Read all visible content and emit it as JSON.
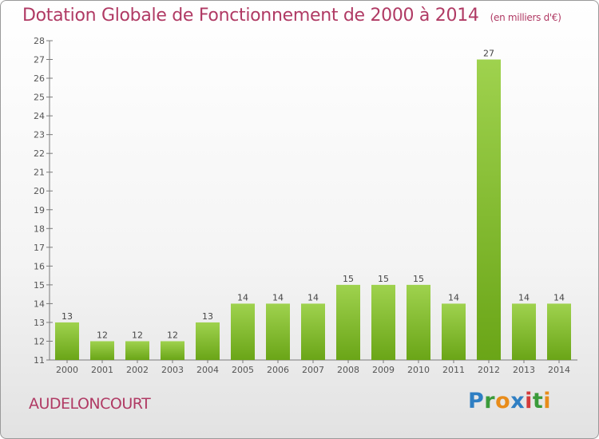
{
  "title": "Dotation Globale de Fonctionnement de 2000 à 2014",
  "subtitle": "(en milliers d'€)",
  "commune": "AUDELONCOURT",
  "logo": {
    "p": "P",
    "r": "r",
    "o": "o",
    "x": "x",
    "i": "i",
    "t": "t",
    "i2": "i"
  },
  "colors": {
    "title": "#b03a64",
    "bar_top": "#9fd24e",
    "bar_bottom": "#6aa517"
  },
  "chart_data": {
    "type": "bar",
    "categories": [
      "2000",
      "2001",
      "2002",
      "2003",
      "2004",
      "2005",
      "2006",
      "2007",
      "2008",
      "2009",
      "2010",
      "2011",
      "2012",
      "2013",
      "2014"
    ],
    "values": [
      13,
      12,
      12,
      12,
      13,
      14,
      14,
      14,
      15,
      15,
      15,
      14,
      27,
      14,
      14
    ],
    "ylim": [
      11,
      28
    ],
    "yticks": [
      11,
      12,
      13,
      14,
      15,
      16,
      17,
      18,
      19,
      20,
      21,
      22,
      23,
      24,
      25,
      26,
      27,
      28
    ],
    "grid": false,
    "xlabel": "",
    "ylabel": ""
  }
}
